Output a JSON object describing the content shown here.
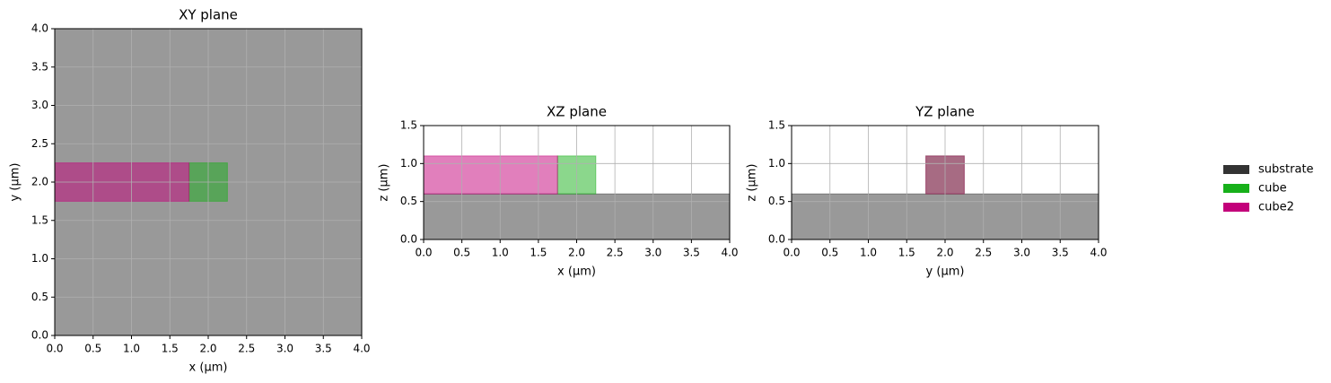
{
  "legend": [
    {
      "name": "substrate",
      "color": "#333333"
    },
    {
      "name": "cube",
      "color": "#17b01a"
    },
    {
      "name": "cube2",
      "color": "#c3007a"
    }
  ],
  "chart_data": [
    {
      "type": "rect",
      "title": "XY plane",
      "xlabel": "x (µm)",
      "ylabel": "y (µm)",
      "xlim": [
        0,
        4
      ],
      "ylim": [
        0,
        4
      ],
      "grid": true,
      "opacity": 0.5,
      "xticks": [
        {
          "value": 0,
          "label": "0.0"
        },
        {
          "value": 0.5,
          "label": "0.5"
        },
        {
          "value": 1,
          "label": "1.0"
        },
        {
          "value": 1.5,
          "label": "1.5"
        },
        {
          "value": 2,
          "label": "2.0"
        },
        {
          "value": 2.5,
          "label": "2.5"
        },
        {
          "value": 3,
          "label": "3.0"
        },
        {
          "value": 3.5,
          "label": "3.5"
        },
        {
          "value": 4,
          "label": "4.0"
        }
      ],
      "yticks": [
        {
          "value": 0,
          "label": "0.0"
        },
        {
          "value": 0.5,
          "label": "0.5"
        },
        {
          "value": 1,
          "label": "1.0"
        },
        {
          "value": 1.5,
          "label": "1.5"
        },
        {
          "value": 2,
          "label": "2.0"
        },
        {
          "value": 2.5,
          "label": "2.5"
        },
        {
          "value": 3,
          "label": "3.0"
        },
        {
          "value": 3.5,
          "label": "3.5"
        },
        {
          "value": 4,
          "label": "4.0"
        }
      ],
      "series": [
        {
          "color": "#333333",
          "x": [
            0,
            4
          ],
          "values": [
            0,
            4
          ]
        },
        {
          "color": "#17b01a",
          "x": [
            1.75,
            2.25
          ],
          "values": [
            1.75,
            2.25
          ]
        },
        {
          "color": "#c3007a",
          "x": [
            0,
            1.75
          ],
          "values": [
            1.75,
            2.25
          ]
        }
      ]
    },
    {
      "type": "rect",
      "title": "XZ plane",
      "xlabel": "x (µm)",
      "ylabel": "z (µm)",
      "xlim": [
        0,
        4
      ],
      "ylim": [
        0,
        1.5
      ],
      "grid": true,
      "opacity": 0.5,
      "xticks": [
        {
          "value": 0,
          "label": "0.0"
        },
        {
          "value": 0.5,
          "label": "0.5"
        },
        {
          "value": 1,
          "label": "1.0"
        },
        {
          "value": 1.5,
          "label": "1.5"
        },
        {
          "value": 2,
          "label": "2.0"
        },
        {
          "value": 2.5,
          "label": "2.5"
        },
        {
          "value": 3,
          "label": "3.0"
        },
        {
          "value": 3.5,
          "label": "3.5"
        },
        {
          "value": 4,
          "label": "4.0"
        }
      ],
      "yticks": [
        {
          "value": 0,
          "label": "0.0"
        },
        {
          "value": 0.5,
          "label": "0.5"
        },
        {
          "value": 1,
          "label": "1.0"
        },
        {
          "value": 1.5,
          "label": "1.5"
        }
      ],
      "series": [
        {
          "color": "#333333",
          "x": [
            0,
            4
          ],
          "values": [
            0,
            0.6
          ]
        },
        {
          "color": "#17b01a",
          "x": [
            1.75,
            2.25
          ],
          "values": [
            0.6,
            1.1
          ]
        },
        {
          "color": "#c3007a",
          "x": [
            0,
            1.75
          ],
          "values": [
            0.6,
            1.1
          ]
        }
      ]
    },
    {
      "type": "rect",
      "title": "YZ plane",
      "xlabel": "y (µm)",
      "ylabel": "z (µm)",
      "xlim": [
        0,
        4
      ],
      "ylim": [
        0,
        1.5
      ],
      "grid": true,
      "opacity": 0.5,
      "xticks": [
        {
          "value": 0,
          "label": "0.0"
        },
        {
          "value": 0.5,
          "label": "0.5"
        },
        {
          "value": 1,
          "label": "1.0"
        },
        {
          "value": 1.5,
          "label": "1.5"
        },
        {
          "value": 2,
          "label": "2.0"
        },
        {
          "value": 2.5,
          "label": "2.5"
        },
        {
          "value": 3,
          "label": "3.0"
        },
        {
          "value": 3.5,
          "label": "3.5"
        },
        {
          "value": 4,
          "label": "4.0"
        }
      ],
      "yticks": [
        {
          "value": 0,
          "label": "0.0"
        },
        {
          "value": 0.5,
          "label": "0.5"
        },
        {
          "value": 1,
          "label": "1.0"
        },
        {
          "value": 1.5,
          "label": "1.5"
        }
      ],
      "series": [
        {
          "color": "#333333",
          "x": [
            0,
            4
          ],
          "values": [
            0,
            0.6
          ]
        },
        {
          "color": "#17b01a",
          "x": [
            1.75,
            2.25
          ],
          "values": [
            0.6,
            1.1
          ]
        },
        {
          "color": "#c3007a",
          "x": [
            1.75,
            2.25
          ],
          "values": [
            0.6,
            1.1
          ]
        }
      ]
    }
  ]
}
